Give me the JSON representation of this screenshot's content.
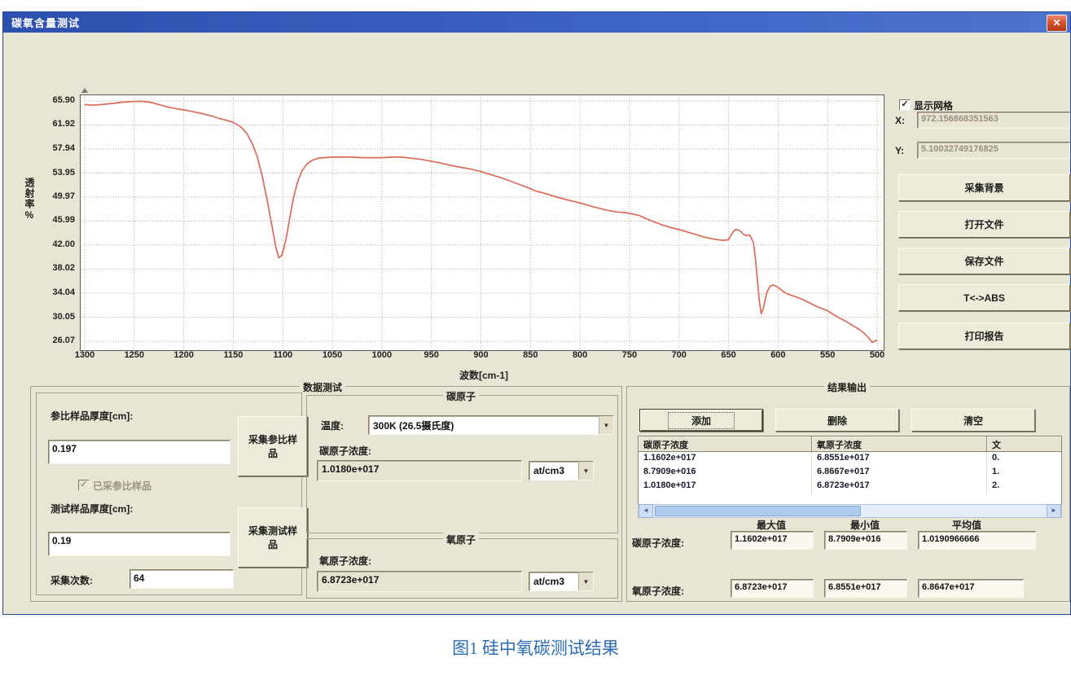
{
  "window": {
    "title": "碳氧含量测试",
    "close_glyph": "✕"
  },
  "colors": {
    "titlebar_blue": "#3d65c4",
    "curve_red": "#dd6a58",
    "caption_blue": "#2a6cb8",
    "dialog_beige": "#e9e5d4",
    "scrollbar_blue": "#aecbee"
  },
  "chart_data": {
    "type": "line",
    "title": "",
    "xlabel": "波数[cm-1]",
    "ylabel": "透射率%",
    "x_ticks": [
      "1300",
      "1250",
      "1200",
      "1150",
      "1100",
      "1050",
      "1000",
      "950",
      "900",
      "850",
      "800",
      "750",
      "700",
      "650",
      "600",
      "550",
      "500"
    ],
    "y_ticks": [
      "65.90",
      "61.92",
      "57.94",
      "53.95",
      "49.97",
      "45.99",
      "42.00",
      "38.02",
      "34.04",
      "30.05",
      "26.07"
    ],
    "xlim": [
      1300,
      500
    ],
    "ylim": [
      26.07,
      65.9
    ],
    "grid": true,
    "legend_position": "none",
    "series": [
      {
        "name": "透射率",
        "points": [
          [
            1300,
            65.3
          ],
          [
            1292,
            65.2
          ],
          [
            1283,
            65.3
          ],
          [
            1272,
            65.5
          ],
          [
            1262,
            65.7
          ],
          [
            1252,
            65.8
          ],
          [
            1243,
            65.85
          ],
          [
            1234,
            65.7
          ],
          [
            1225,
            65.3
          ],
          [
            1216,
            64.9
          ],
          [
            1207,
            64.6
          ],
          [
            1199,
            64.4
          ],
          [
            1190,
            64.1
          ],
          [
            1181,
            63.8
          ],
          [
            1172,
            63.4
          ],
          [
            1164,
            63.0
          ],
          [
            1157,
            62.7
          ],
          [
            1151,
            62.4
          ],
          [
            1146,
            62.0
          ],
          [
            1141,
            61.4
          ],
          [
            1136,
            60.4
          ],
          [
            1131,
            58.9
          ],
          [
            1126,
            56.8
          ],
          [
            1121,
            53.6
          ],
          [
            1116,
            49.6
          ],
          [
            1111,
            45.2
          ],
          [
            1107,
            41.6
          ],
          [
            1104,
            39.9
          ],
          [
            1101,
            40.3
          ],
          [
            1097,
            42.8
          ],
          [
            1093,
            46.5
          ],
          [
            1089,
            50.0
          ],
          [
            1085,
            52.5
          ],
          [
            1081,
            54.2
          ],
          [
            1076,
            55.4
          ],
          [
            1071,
            56.0
          ],
          [
            1065,
            56.4
          ],
          [
            1058,
            56.5
          ],
          [
            1050,
            56.6
          ],
          [
            1040,
            56.6
          ],
          [
            1030,
            56.6
          ],
          [
            1020,
            56.5
          ],
          [
            1010,
            56.5
          ],
          [
            1000,
            56.5
          ],
          [
            990,
            56.6
          ],
          [
            980,
            56.6
          ],
          [
            970,
            56.4
          ],
          [
            960,
            56.2
          ],
          [
            950,
            55.9
          ],
          [
            940,
            55.6
          ],
          [
            930,
            55.2
          ],
          [
            920,
            54.9
          ],
          [
            910,
            54.6
          ],
          [
            900,
            54.2
          ],
          [
            890,
            53.7
          ],
          [
            880,
            53.2
          ],
          [
            870,
            52.6
          ],
          [
            860,
            52.0
          ],
          [
            852,
            51.5
          ],
          [
            845,
            51.0
          ],
          [
            838,
            50.7
          ],
          [
            830,
            50.3
          ],
          [
            822,
            49.9
          ],
          [
            815,
            49.6
          ],
          [
            808,
            49.3
          ],
          [
            800,
            49.0
          ],
          [
            792,
            48.6
          ],
          [
            785,
            48.3
          ],
          [
            778,
            48.0
          ],
          [
            770,
            47.7
          ],
          [
            762,
            47.5
          ],
          [
            755,
            47.4
          ],
          [
            748,
            47.2
          ],
          [
            740,
            46.9
          ],
          [
            732,
            46.3
          ],
          [
            724,
            45.8
          ],
          [
            716,
            45.3
          ],
          [
            708,
            44.9
          ],
          [
            700,
            44.6
          ],
          [
            692,
            44.2
          ],
          [
            684,
            43.8
          ],
          [
            676,
            43.4
          ],
          [
            668,
            43.1
          ],
          [
            661,
            42.9
          ],
          [
            655,
            42.8
          ],
          [
            650,
            42.9
          ],
          [
            647,
            43.8
          ],
          [
            644,
            44.5
          ],
          [
            641,
            44.6
          ],
          [
            638,
            44.3
          ],
          [
            635,
            43.8
          ],
          [
            632,
            43.6
          ],
          [
            629,
            43.7
          ],
          [
            627,
            43.2
          ],
          [
            625,
            42.4
          ],
          [
            623,
            40.0
          ],
          [
            621,
            36.5
          ],
          [
            619,
            32.8
          ],
          [
            617,
            30.6
          ],
          [
            615,
            31.5
          ],
          [
            613,
            33.0
          ],
          [
            611,
            34.3
          ],
          [
            608,
            35.2
          ],
          [
            605,
            35.4
          ],
          [
            601,
            35.1
          ],
          [
            597,
            34.6
          ],
          [
            593,
            34.1
          ],
          [
            589,
            33.8
          ],
          [
            585,
            33.6
          ],
          [
            580,
            33.3
          ],
          [
            574,
            32.9
          ],
          [
            568,
            32.4
          ],
          [
            562,
            31.9
          ],
          [
            556,
            31.5
          ],
          [
            550,
            31.1
          ],
          [
            544,
            30.5
          ],
          [
            538,
            29.9
          ],
          [
            532,
            29.4
          ],
          [
            527,
            28.9
          ],
          [
            522,
            28.4
          ],
          [
            517,
            27.9
          ],
          [
            512,
            27.2
          ],
          [
            508,
            26.5
          ],
          [
            505,
            25.9
          ],
          [
            503,
            26.0
          ],
          [
            501,
            26.2
          ],
          [
            500,
            26.2
          ]
        ]
      }
    ]
  },
  "right_panel": {
    "show_grid_label": "显示网格",
    "x_label": "X:",
    "x_value": "972.156868351563",
    "y_label": "Y:",
    "y_value": "5.10032749176825",
    "buttons": [
      "采集背景",
      "打开文件",
      "保存文件",
      "T<->ABS",
      "打印报告"
    ]
  },
  "data_test": {
    "group_title": "数据测试",
    "ref_thickness_label": "参比样品厚度[cm]:",
    "ref_thickness_value": "0.197",
    "collect_ref_button": "采集参比样品",
    "ref_collected_label": "已采参比样品",
    "test_thickness_label": "测试样品厚度[cm]:",
    "test_thickness_value": "0.19",
    "collect_test_button": "采集测试样品",
    "scan_count_label": "采集次数:",
    "scan_count_value": "64",
    "carbon_group": {
      "title": "碳原子",
      "temp_label": "温度:",
      "temp_value": "300K (26.5摄氏度)",
      "conc_label": "碳原子浓度:",
      "conc_value": "1.0180e+017",
      "unit": "at/cm3"
    },
    "oxygen_group": {
      "title": "氧原子",
      "conc_label": "氧原子浓度:",
      "conc_value": "6.8723e+017",
      "unit": "at/cm3"
    }
  },
  "results": {
    "group_title": "结果输出",
    "add_button": "添加",
    "delete_button": "删除",
    "clear_button": "清空",
    "table": {
      "headers": [
        "碳原子浓度",
        "氧原子浓度",
        "文"
      ],
      "rows": [
        [
          "1.1602e+017",
          "6.8551e+017",
          "0."
        ],
        [
          "8.7909e+016",
          "6.8667e+017",
          "1."
        ],
        [
          "1.0180e+017",
          "6.8723e+017",
          "2."
        ]
      ]
    },
    "stats": {
      "col_headers": [
        "最大值",
        "最小值",
        "平均值"
      ],
      "carbon_label": "碳原子浓度:",
      "carbon_values": [
        "1.1602e+017",
        "8.7909e+016",
        "1.0190966666"
      ],
      "oxygen_label": "氧原子浓度:",
      "oxygen_values": [
        "6.8723e+017",
        "6.8551e+017",
        "6.8647e+017"
      ]
    }
  },
  "caption": "图1 硅中氧碳测试结果"
}
